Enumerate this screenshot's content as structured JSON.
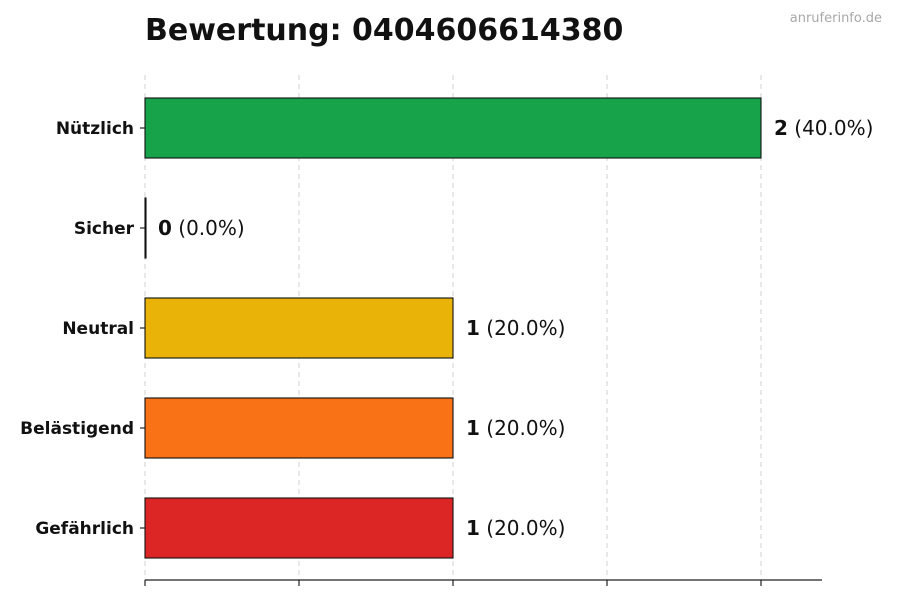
{
  "title": "Bewertung: 0404606614380",
  "watermark": "anruferinfo.de",
  "chart_data": {
    "type": "bar",
    "orientation": "horizontal",
    "title": "Bewertung: 0404606614380",
    "xlabel": "",
    "ylabel": "",
    "xlim": [
      0,
      2.2
    ],
    "grid": true,
    "categories": [
      "Nützlich",
      "Sicher",
      "Neutral",
      "Belästigend",
      "Gefährlich"
    ],
    "values": [
      2,
      0,
      1,
      1,
      1
    ],
    "percent_labels": [
      "(40.0%)",
      "(0.0%)",
      "(20.0%)",
      "(20.0%)",
      "(20.0%)"
    ],
    "colors": [
      "#16a34a",
      "#22c55e",
      "#eab308",
      "#f97316",
      "#dc2626"
    ]
  }
}
